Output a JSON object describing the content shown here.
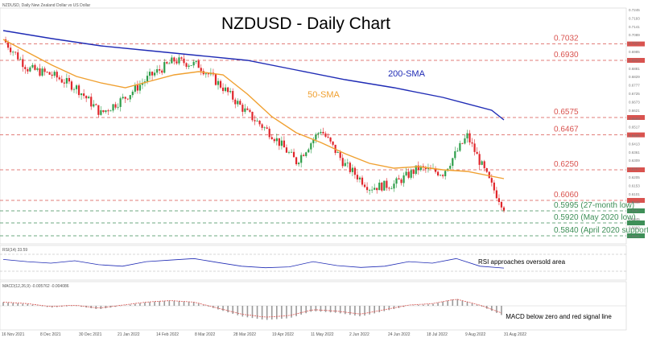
{
  "header": {
    "symbol_line": "NZDUSD, Daily New Zealand Dollar vs US Dollar",
    "rsi_label": "RSI(14) 33.59",
    "macd_label": "MACD(12,26,9) -0.005762 -0.004086"
  },
  "chart_data": {
    "type": "line",
    "title": "NZDUSD - Daily Chart",
    "xlabel": "",
    "ylabel": "",
    "ylim": [
      0.5805,
      0.7245
    ],
    "x_ticks": [
      "16 Nov 2021",
      "8 Dec 2021",
      "30 Dec 2021",
      "21 Jan 2022",
      "14 Feb 2022",
      "8 Mar 2022",
      "28 Mar 2022",
      "19 Apr 2022",
      "11 May 2022",
      "2 Jun 2022",
      "24 Jun 2022",
      "18 Jul 2022",
      "9 Aug 2022",
      "31 Aug 2022"
    ],
    "y_ticks": [
      0.7245,
      0.7193,
      0.7141,
      0.7089,
      0.7037,
      0.6985,
      0.6933,
      0.6881,
      0.6829,
      0.6777,
      0.6725,
      0.6673,
      0.6621,
      0.6569,
      0.6517,
      0.6465,
      0.6413,
      0.6361,
      0.6309,
      0.6257,
      0.6205,
      0.6153,
      0.6101,
      0.6049,
      0.5997,
      0.5945,
      0.5893,
      0.5841
    ],
    "levels": [
      {
        "label": "0.7032",
        "value": 0.7032,
        "color": "#d9534f"
      },
      {
        "label": "0.6930",
        "value": 0.693,
        "color": "#d9534f"
      },
      {
        "label": "0.6575",
        "value": 0.6575,
        "color": "#d9534f"
      },
      {
        "label": "0.6467",
        "value": 0.6467,
        "color": "#d9534f"
      },
      {
        "label": "0.6250",
        "value": 0.625,
        "color": "#d9534f"
      },
      {
        "label": "0.6060",
        "value": 0.606,
        "color": "#d9534f"
      },
      {
        "label": "0.5995 (27-month low)",
        "value": 0.5995,
        "color": "#3e8f58"
      },
      {
        "label": "0.5920 (May 2020 low)",
        "value": 0.592,
        "color": "#3e8f58"
      },
      {
        "label": "0.5840 (April 2020 support)",
        "value": 0.584,
        "color": "#3e8f58"
      }
    ],
    "series": [
      {
        "name": "200-SMA",
        "color": "#1f2bb5",
        "x": [
          0,
          20,
          40,
          60,
          80,
          100,
          120,
          140,
          160,
          180,
          200,
          205
        ],
        "values": [
          0.7115,
          0.7065,
          0.702,
          0.699,
          0.696,
          0.693,
          0.687,
          0.681,
          0.676,
          0.67,
          0.662,
          0.656
        ]
      },
      {
        "name": "50-SMA",
        "color": "#f0a030",
        "x": [
          0,
          10,
          20,
          30,
          40,
          50,
          60,
          70,
          80,
          90,
          100,
          110,
          120,
          130,
          140,
          150,
          160,
          170,
          180,
          190,
          200,
          205
        ],
        "values": [
          0.706,
          0.698,
          0.69,
          0.683,
          0.679,
          0.676,
          0.68,
          0.684,
          0.686,
          0.684,
          0.672,
          0.658,
          0.648,
          0.642,
          0.635,
          0.629,
          0.626,
          0.627,
          0.625,
          0.624,
          0.621,
          0.6195
        ]
      }
    ],
    "price": {
      "x": [
        0,
        10,
        20,
        30,
        40,
        50,
        60,
        70,
        80,
        90,
        100,
        110,
        120,
        130,
        140,
        150,
        160,
        170,
        180,
        190,
        200,
        205
      ],
      "values": [
        0.706,
        0.688,
        0.684,
        0.676,
        0.66,
        0.67,
        0.683,
        0.693,
        0.69,
        0.676,
        0.66,
        0.647,
        0.63,
        0.65,
        0.628,
        0.614,
        0.616,
        0.626,
        0.623,
        0.646,
        0.615,
        0.602
      ]
    },
    "annotations": [
      "200-SMA",
      "50-SMA"
    ],
    "rsi": {
      "label": "RSI approaches oversold area",
      "values": [
        62,
        55,
        50,
        58,
        45,
        40,
        55,
        60,
        65,
        52,
        40,
        35,
        38,
        55,
        42,
        36,
        40,
        55,
        50,
        65,
        40,
        34
      ]
    },
    "macd": {
      "label": "MACD below zero and red signal line",
      "values": [
        0.002,
        0.001,
        -0.001,
        0.0,
        -0.002,
        0.0,
        0.002,
        0.003,
        0.002,
        -0.002,
        -0.006,
        -0.008,
        -0.007,
        -0.003,
        -0.004,
        -0.006,
        -0.003,
        0.0,
        0.001,
        0.004,
        0.0,
        -0.0058
      ]
    }
  }
}
